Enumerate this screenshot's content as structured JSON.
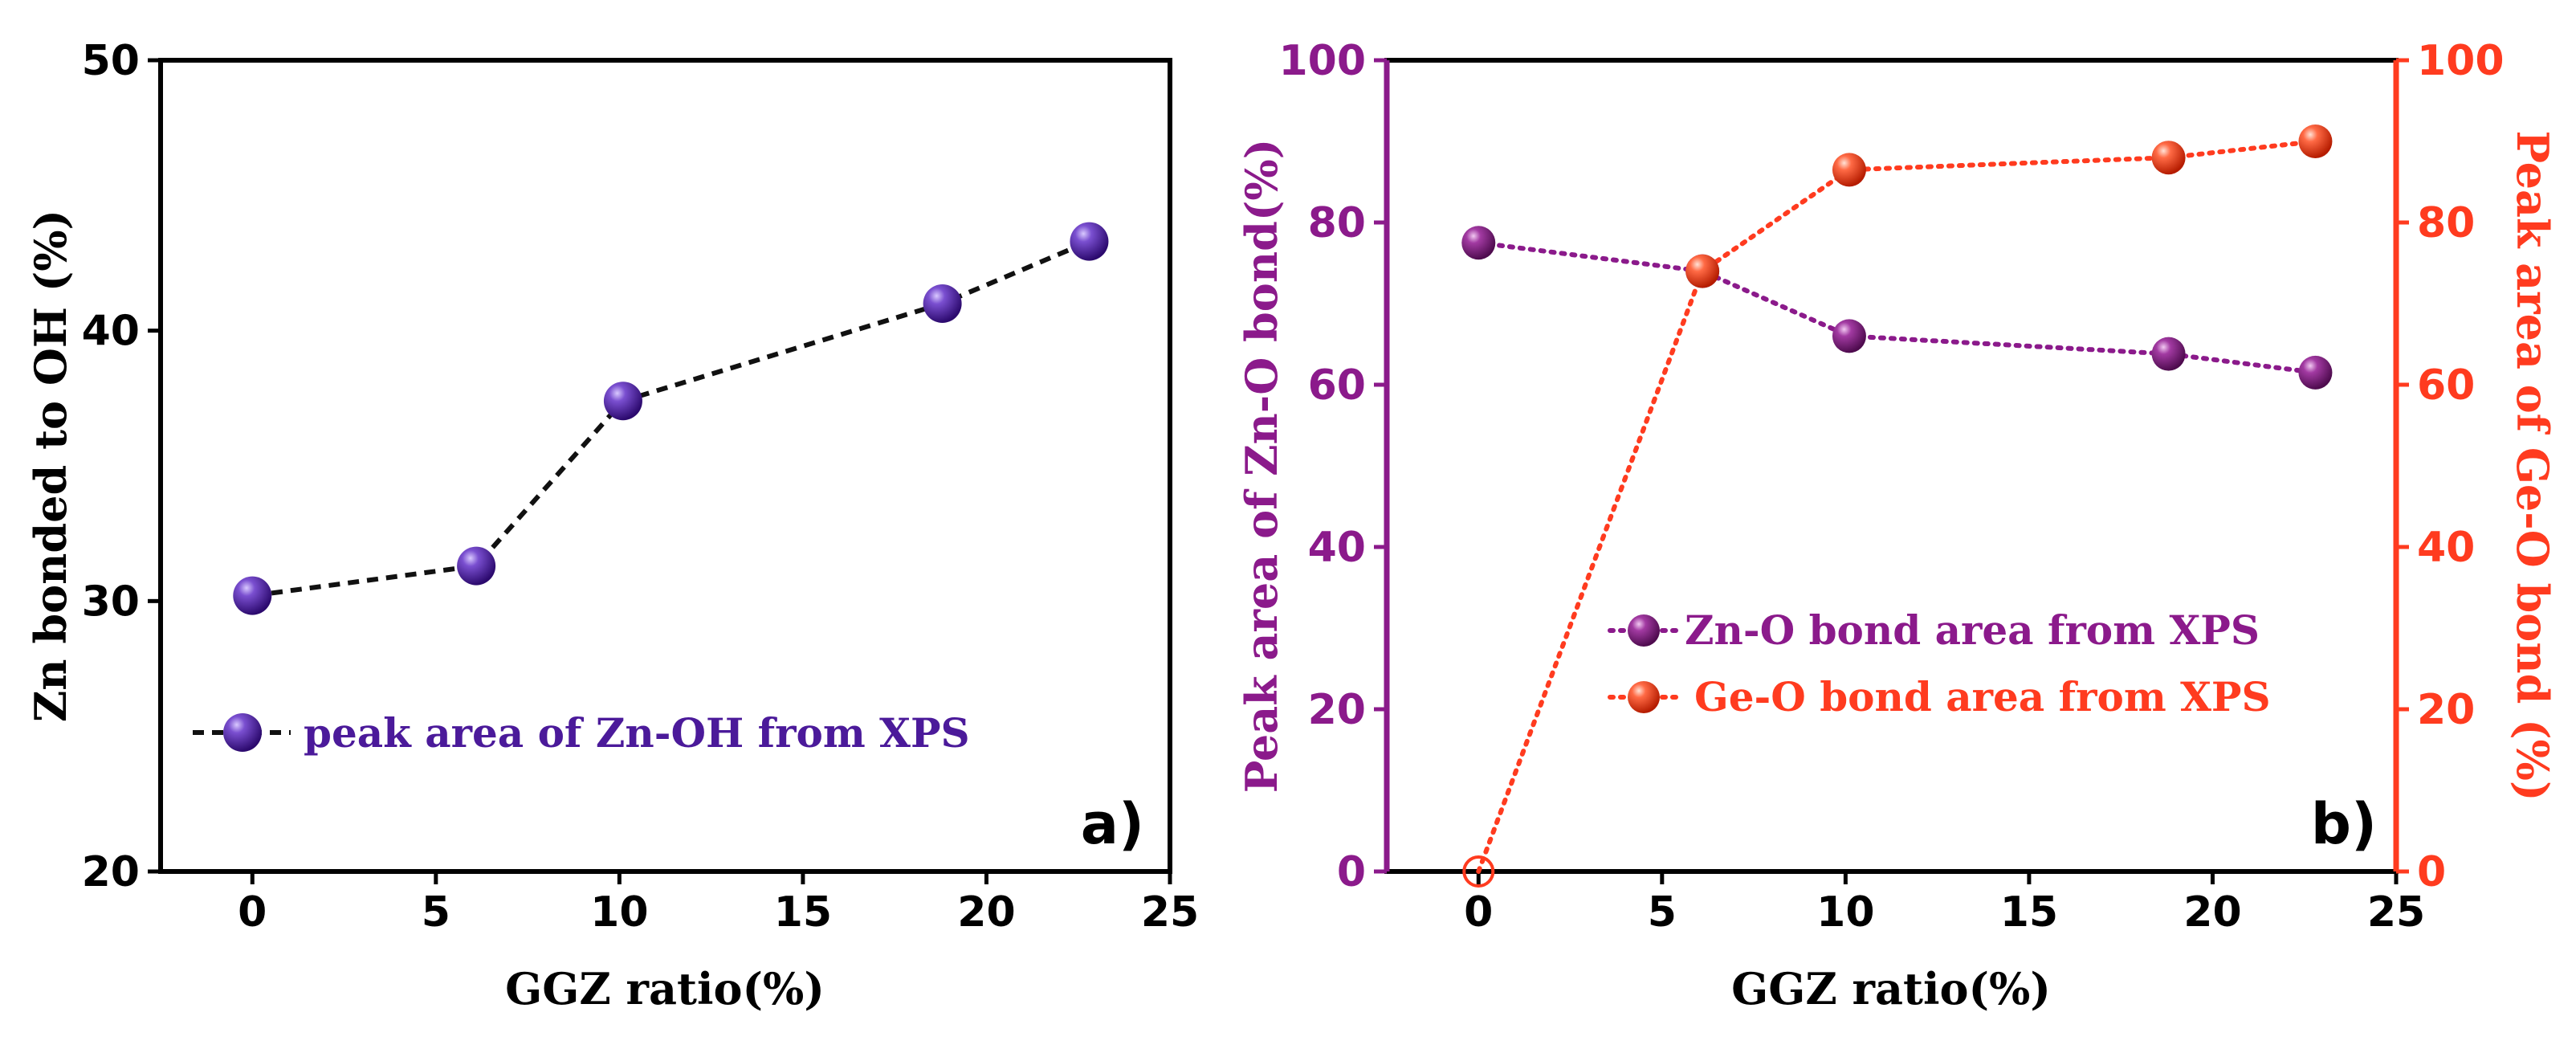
{
  "chart_data": [
    {
      "panel": "a)",
      "type": "line",
      "xlabel": "GGZ ratio(%)",
      "ylabel": "Zn bonded to OH (%)",
      "xlim": [
        -2.5,
        25
      ],
      "ylim": [
        20,
        50
      ],
      "xticks": [
        0,
        5,
        10,
        15,
        20,
        25
      ],
      "yticks": [
        20,
        30,
        40,
        50
      ],
      "series": [
        {
          "name": "peak area of Zn-OH from XPS",
          "color": "#4b1a9a",
          "line_style": "dashed",
          "line_color": "#111111",
          "x": [
            0,
            6.1,
            10.1,
            18.8,
            22.8
          ],
          "y": [
            30.2,
            31.3,
            37.4,
            41.0,
            43.3
          ]
        }
      ],
      "legend": "bottom-left"
    },
    {
      "panel": "b)",
      "type": "line",
      "xlabel": "GGZ ratio(%)",
      "ylabel_left": "Peak area of Zn-O bond(%)",
      "ylabel_right": "Peak area of Ge-O bond (%)",
      "xlim": [
        -2.5,
        25
      ],
      "ylim_left": [
        0,
        100
      ],
      "ylim_right": [
        0,
        100
      ],
      "xticks": [
        0,
        5,
        10,
        15,
        20,
        25
      ],
      "yticks": [
        0,
        20,
        40,
        60,
        80,
        100
      ],
      "left_axis_color": "#8b1a8b",
      "right_axis_color": "#ff3b1f",
      "series": [
        {
          "name": "Zn-O bond area from XPS",
          "axis": "left",
          "color": "#8b1a8b",
          "line_style": "dotted",
          "x": [
            0,
            6.1,
            10.1,
            18.8,
            22.8
          ],
          "y": [
            77.5,
            74.0,
            66.0,
            63.8,
            61.5
          ]
        },
        {
          "name": "Ge-O bond area from XPS",
          "axis": "right",
          "color": "#ff3b1f",
          "line_style": "dotted",
          "x": [
            0,
            6.1,
            10.1,
            18.8,
            22.8
          ],
          "y": [
            0,
            74.0,
            86.5,
            88.0,
            90.0
          ]
        }
      ],
      "legend": "middle-right"
    }
  ]
}
